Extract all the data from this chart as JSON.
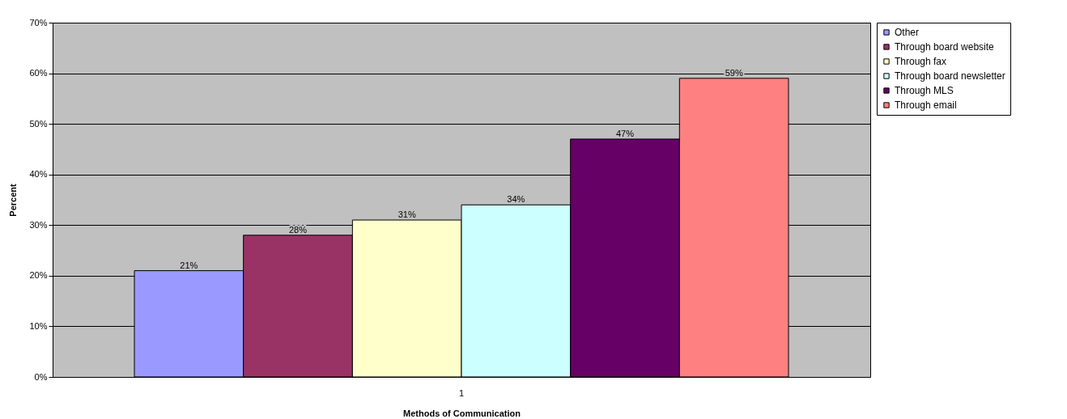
{
  "chart_data": {
    "type": "bar",
    "xlabel": "Methods of Communication",
    "ylabel": "Percent",
    "categories": [
      "1"
    ],
    "series": [
      {
        "name": "Other",
        "color": "#9999ff",
        "values": [
          21
        ],
        "value_labels": [
          "21%"
        ]
      },
      {
        "name": "Through board website",
        "color": "#993366",
        "values": [
          28
        ],
        "value_labels": [
          "28%"
        ]
      },
      {
        "name": "Through fax",
        "color": "#ffffcc",
        "values": [
          31
        ],
        "value_labels": [
          "31%"
        ]
      },
      {
        "name": "Through board newsletter",
        "color": "#ccffff",
        "values": [
          34
        ],
        "value_labels": [
          "34%"
        ]
      },
      {
        "name": "Through MLS",
        "color": "#660066",
        "values": [
          47
        ],
        "value_labels": [
          "47%"
        ]
      },
      {
        "name": "Through email",
        "color": "#ff8080",
        "values": [
          59
        ],
        "value_labels": [
          "59%"
        ]
      }
    ],
    "ylim": [
      0,
      70
    ],
    "yticks": [
      {
        "value": 0,
        "label": "0%"
      },
      {
        "value": 10,
        "label": "10%"
      },
      {
        "value": 20,
        "label": "20%"
      },
      {
        "value": 30,
        "label": "30%"
      },
      {
        "value": 40,
        "label": "40%"
      },
      {
        "value": 50,
        "label": "50%"
      },
      {
        "value": 60,
        "label": "60%"
      },
      {
        "value": 70,
        "label": "70%"
      }
    ],
    "grid": "y",
    "legend": "right"
  }
}
